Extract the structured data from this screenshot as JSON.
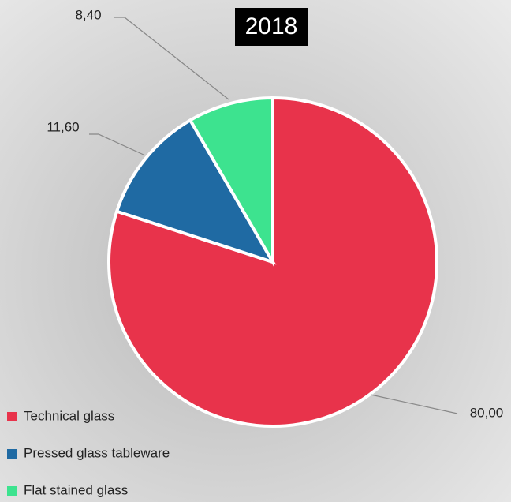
{
  "chart_data": {
    "type": "pie",
    "title": "2018",
    "categories": [
      "Technical glass",
      "Pressed glass tableware",
      "Flat stained glass"
    ],
    "values": [
      80,
      11.6,
      8.4
    ],
    "value_labels": [
      "80,00",
      "11,60",
      "8,40"
    ],
    "colors": [
      "#e8334b",
      "#1f6aa3",
      "#3de38f"
    ],
    "legend": "bottom-left"
  }
}
